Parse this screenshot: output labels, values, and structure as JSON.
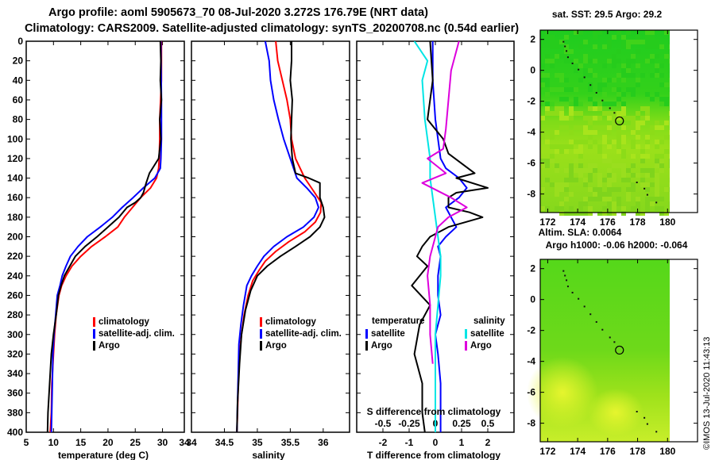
{
  "header": {
    "line1": "Argo profile: aoml 5905673_70 08-Jul-2020 3.272S 176.79E (NRT data)",
    "line2": "Climatology: CARS2009. Satellite-adjusted climatology: synTS_20200708.nc (0.54d earlier)"
  },
  "colors": {
    "climatology": "#ff0000",
    "satellite": "#0000ff",
    "argo": "#000000",
    "sat_salinity": "#00e5e5",
    "argo_salinity": "#dd00dd"
  },
  "chart_data": [
    {
      "type": "line",
      "id": "temperature",
      "xlabel": "temperature (deg C)",
      "ylabel": "",
      "xlim": [
        5,
        34
      ],
      "ylim": [
        400,
        0
      ],
      "xticks": [
        5,
        10,
        15,
        20,
        25,
        30,
        34
      ],
      "yticks": [
        0,
        20,
        40,
        60,
        80,
        100,
        120,
        140,
        160,
        180,
        200,
        220,
        240,
        260,
        280,
        300,
        320,
        340,
        360,
        380,
        400
      ],
      "legend": [
        "climatology",
        "satellite-adj. clim.",
        "Argo"
      ],
      "series": [
        {
          "name": "climatology",
          "color": "#ff0000",
          "x": [
            29.8,
            29.8,
            29.5,
            29.5,
            29.4,
            29.3,
            28.9,
            27.8,
            26.0,
            24.5,
            23.0,
            21.8,
            19.5,
            17.0,
            15.0,
            13.4,
            12.3,
            11.5,
            11.0,
            10.5,
            10.2,
            10.0,
            9.7,
            9.6,
            9.4
          ],
          "y": [
            0,
            40,
            80,
            100,
            120,
            130,
            140,
            150,
            160,
            170,
            180,
            190,
            200,
            210,
            220,
            230,
            240,
            250,
            260,
            280,
            300,
            320,
            350,
            380,
            400
          ]
        },
        {
          "name": "satellite-adj. clim.",
          "color": "#0000ff",
          "x": [
            29.7,
            29.8,
            29.8,
            29.7,
            29.6,
            28.6,
            26.5,
            24.6,
            22.6,
            20.8,
            18.6,
            16.2,
            14.5,
            13.1,
            12.3,
            11.6,
            11.2,
            10.7,
            10.4,
            10.1,
            9.9,
            9.8,
            9.6
          ],
          "y": [
            0,
            60,
            100,
            120,
            130,
            140,
            150,
            160,
            170,
            180,
            190,
            200,
            210,
            220,
            230,
            240,
            250,
            260,
            280,
            300,
            320,
            350,
            400
          ]
        },
        {
          "name": "Argo",
          "color": "#000000",
          "x": [
            29.6,
            29.7,
            29.6,
            29.8,
            29.5,
            29.7,
            29.3,
            27.6,
            27.0,
            26.5,
            26.0,
            25.0,
            23.5,
            22.0,
            20.0,
            18.0,
            15.8,
            14.0,
            13.0,
            12.0,
            11.4,
            10.9,
            10.5,
            10.0,
            9.6,
            9.3,
            9.0,
            8.9
          ],
          "y": [
            0,
            20,
            40,
            60,
            80,
            100,
            120,
            135,
            145,
            155,
            160,
            165,
            170,
            180,
            190,
            200,
            210,
            220,
            230,
            240,
            250,
            260,
            280,
            300,
            320,
            350,
            380,
            400
          ]
        }
      ]
    },
    {
      "type": "line",
      "id": "salinity",
      "xlabel": "salinity",
      "xlim": [
        34.0,
        36.4
      ],
      "ylim": [
        400,
        0
      ],
      "xticks": [
        34.5,
        35,
        35.5,
        36
      ],
      "legend": [
        "climatology",
        "satellite-adj. clim.",
        "Argo"
      ],
      "series": [
        {
          "name": "climatology",
          "color": "#ff0000",
          "x": [
            35.28,
            35.31,
            35.38,
            35.45,
            35.5,
            35.52,
            35.58,
            35.72,
            35.87,
            35.97,
            35.96,
            35.88,
            35.72,
            35.48,
            35.28,
            35.12,
            35.02,
            34.93,
            34.86,
            34.8,
            34.76,
            34.73,
            34.71,
            34.7,
            34.69
          ],
          "y": [
            0,
            20,
            40,
            60,
            80,
            100,
            120,
            140,
            155,
            165,
            175,
            185,
            195,
            205,
            215,
            225,
            235,
            245,
            260,
            280,
            300,
            320,
            350,
            380,
            400
          ]
        },
        {
          "name": "satellite-adj. clim.",
          "color": "#0000ff",
          "x": [
            35.12,
            35.18,
            35.2,
            35.25,
            35.32,
            35.4,
            35.5,
            35.6,
            35.75,
            35.88,
            35.93,
            35.86,
            35.7,
            35.45,
            35.25,
            35.1,
            35.0,
            34.91,
            34.84,
            34.79,
            34.75,
            34.72,
            34.71,
            34.7,
            34.69
          ],
          "y": [
            0,
            20,
            40,
            60,
            80,
            100,
            120,
            140,
            150,
            160,
            170,
            180,
            190,
            200,
            210,
            220,
            230,
            240,
            250,
            270,
            290,
            310,
            340,
            370,
            400
          ]
        },
        {
          "name": "Argo",
          "color": "#000000",
          "x": [
            35.52,
            35.52,
            35.5,
            35.53,
            35.52,
            35.51,
            35.53,
            35.58,
            35.78,
            35.95,
            35.95,
            36.0,
            36.02,
            35.95,
            35.8,
            35.58,
            35.35,
            35.15,
            35.0,
            34.9,
            34.82,
            34.76,
            34.73,
            34.7,
            34.69
          ],
          "y": [
            0,
            20,
            40,
            60,
            80,
            100,
            120,
            135,
            140,
            145,
            160,
            170,
            180,
            190,
            200,
            210,
            220,
            230,
            240,
            255,
            275,
            300,
            330,
            370,
            400
          ]
        }
      ]
    },
    {
      "type": "line",
      "id": "difference",
      "xlabel": "T difference from climatology",
      "xlabel2": "S difference from climatology",
      "xlim": [
        -3,
        3
      ],
      "ylim": [
        400,
        0
      ],
      "xticks_t": [
        -2,
        -1,
        0,
        1,
        2
      ],
      "xticks_s": [
        -0.5,
        -0.25,
        0,
        0.25,
        0.5
      ],
      "legend_temperature_title": "temperature",
      "legend_salinity_title": "salinity",
      "legend": [
        "satellite",
        "Argo",
        "satellite",
        "Argo"
      ],
      "series": [
        {
          "name": "satellite",
          "group": "temperature",
          "color": "#0000ff",
          "x": [
            -0.1,
            -0.1,
            0.0,
            0.1,
            0.2,
            0.4,
            0.9,
            1.2,
            0.9,
            0.4,
            0.6,
            0.8,
            0.4,
            0.1,
            0.2,
            0.1,
            0.1,
            0.2,
            0.0,
            0.1,
            0.2,
            0.2,
            0.2
          ],
          "y": [
            0,
            40,
            80,
            100,
            120,
            130,
            140,
            150,
            160,
            170,
            180,
            190,
            200,
            210,
            220,
            240,
            260,
            280,
            300,
            320,
            350,
            380,
            400
          ]
        },
        {
          "name": "Argo",
          "group": "temperature",
          "color": "#000000",
          "x": [
            -0.2,
            -0.1,
            -0.3,
            0.3,
            0.5,
            1.5,
            0.8,
            2.0,
            0.8,
            0.5,
            0.5,
            1.3,
            1.8,
            0.5,
            -0.2,
            -0.5,
            -0.7,
            -0.3,
            -0.9,
            -0.2,
            -0.6,
            -0.8,
            -0.5,
            -0.5,
            -0.4
          ],
          "y": [
            0,
            40,
            80,
            100,
            115,
            135,
            140,
            150,
            155,
            160,
            170,
            175,
            180,
            190,
            200,
            210,
            220,
            230,
            250,
            270,
            290,
            320,
            350,
            380,
            400
          ]
        },
        {
          "name": "satellite",
          "group": "salinity",
          "color": "#00e5e5",
          "x": [
            -0.8,
            -0.3,
            -0.5,
            -0.4,
            -0.3,
            -0.2,
            -0.2,
            -0.1,
            0.0,
            0.1,
            0.2,
            0.2,
            0.1,
            0.0,
            0.0,
            0.0,
            0.0
          ],
          "y": [
            0,
            20,
            40,
            80,
            100,
            120,
            140,
            160,
            180,
            200,
            220,
            240,
            270,
            300,
            330,
            360,
            400
          ]
        },
        {
          "name": "Argo",
          "group": "salinity",
          "color": "#dd00dd",
          "x": [
            0.9,
            0.6,
            0.5,
            0.4,
            0.3,
            -0.3,
            0.4,
            -0.5,
            0.6,
            1.2,
            0.5,
            0.1,
            0.0,
            -0.2,
            -0.3,
            -0.2,
            -0.2,
            -0.1
          ],
          "y": [
            0,
            30,
            60,
            90,
            110,
            120,
            135,
            145,
            160,
            170,
            180,
            190,
            200,
            220,
            240,
            270,
            300,
            330
          ]
        }
      ]
    },
    {
      "type": "heatmap",
      "id": "sst_map",
      "title": "sat. SST: 29.5 Argo: 29.2",
      "xlim": [
        171.5,
        182
      ],
      "ylim": [
        -9.2,
        2.6
      ],
      "xticks": [
        172,
        174,
        176,
        178,
        180
      ],
      "yticks": [
        2,
        0,
        -2,
        -4,
        -6,
        -8
      ],
      "marker": {
        "lon": 176.79,
        "lat": -3.272
      }
    },
    {
      "type": "heatmap",
      "id": "sla_map",
      "title": "Altim. SLA: 0.0064",
      "subtitle": "Argo h1000: -0.06 h2000: -0.064",
      "xlim": [
        171.5,
        182
      ],
      "ylim": [
        -9.2,
        2.6
      ],
      "xticks": [
        172,
        174,
        176,
        178,
        180
      ],
      "yticks": [
        2,
        0,
        -2,
        -4,
        -6,
        -8
      ],
      "marker": {
        "lon": 176.79,
        "lat": -3.272
      }
    }
  ],
  "credit": "©IMOS 13-Jul-2020 11:43:13"
}
